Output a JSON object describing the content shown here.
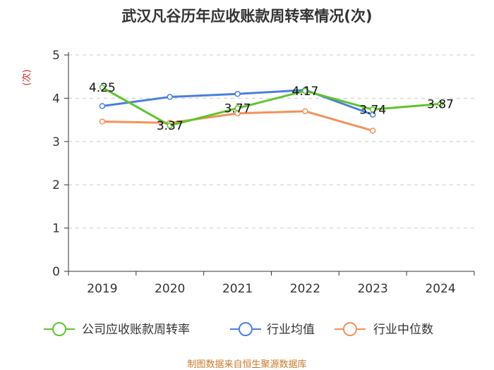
{
  "chart_data": {
    "type": "line",
    "title": "武汉凡谷历年应收账款周转率情况(次)",
    "ylabel": "(次)",
    "xlabel": "",
    "categories": [
      "2019",
      "2020",
      "2021",
      "2022",
      "2023",
      "2024"
    ],
    "ylim": [
      0,
      5
    ],
    "yticks": [
      0,
      1,
      2,
      3,
      4,
      5
    ],
    "grid": true,
    "legend_position": "bottom",
    "series": [
      {
        "name": "公司应收账款周转率",
        "color": "#5ec42d",
        "values": [
          4.25,
          3.37,
          3.77,
          4.17,
          3.74,
          3.87
        ],
        "labels": [
          "4.25",
          "3.37",
          "3.77",
          "4.17",
          "3.74",
          "3.87"
        ]
      },
      {
        "name": "行业均值",
        "color": "#4a7fdc",
        "values": [
          3.82,
          4.03,
          4.1,
          4.19,
          3.62,
          null
        ]
      },
      {
        "name": "行业中位数",
        "color": "#f5915a",
        "values": [
          3.46,
          3.43,
          3.65,
          3.7,
          3.25,
          null
        ]
      }
    ],
    "source": "制图数据来自恒生聚源数据库"
  }
}
